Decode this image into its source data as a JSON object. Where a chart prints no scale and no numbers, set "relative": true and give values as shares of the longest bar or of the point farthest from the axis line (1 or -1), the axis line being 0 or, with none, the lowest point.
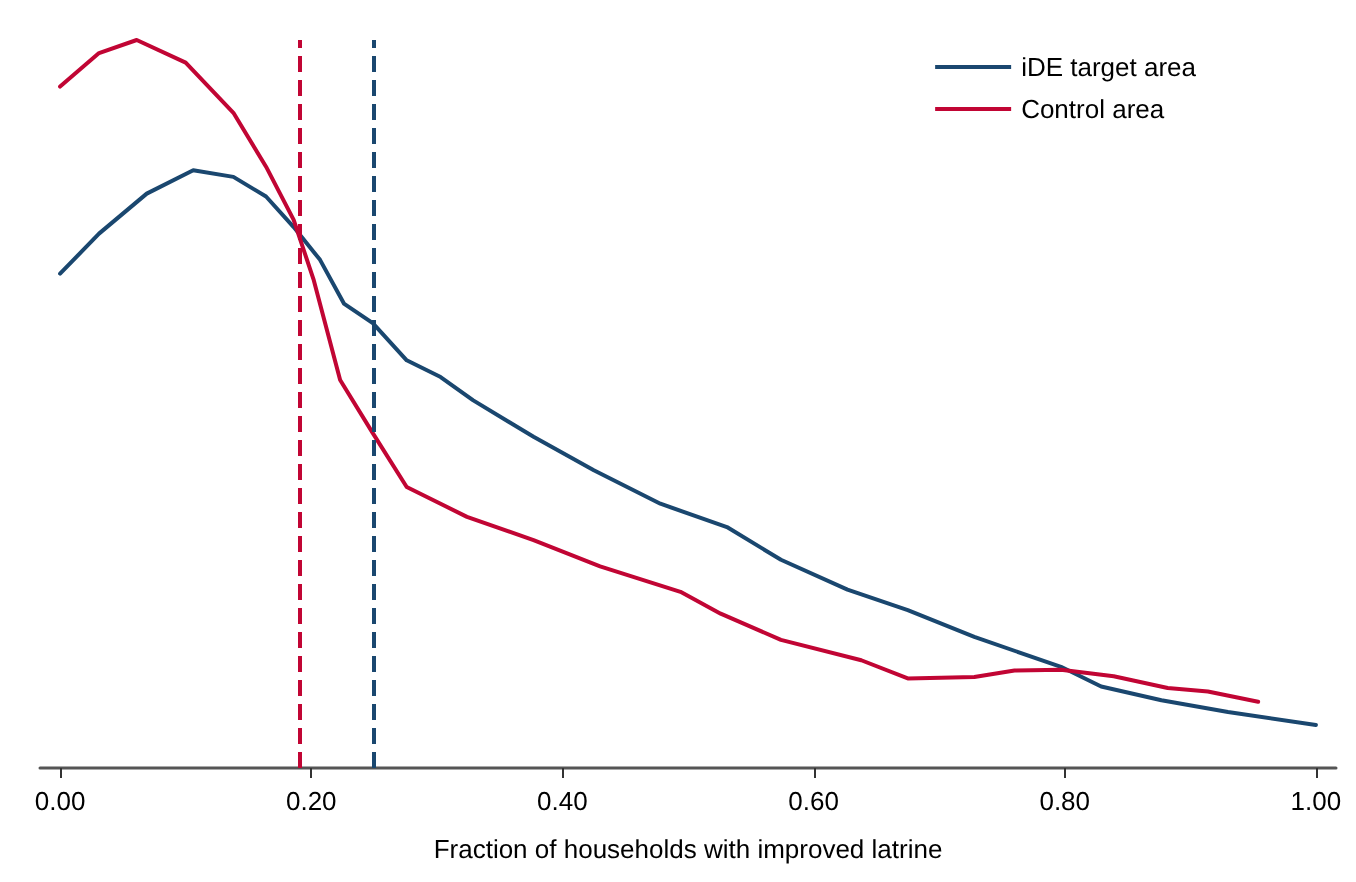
{
  "chart_data": {
    "type": "line",
    "relative": true,
    "xlabel": "Fraction of households with improved latrine",
    "xlim": [
      -0.016,
      1.016
    ],
    "xticks": [
      {
        "value": 0,
        "label": "0.00"
      },
      {
        "value": 0.2,
        "label": "0.20"
      },
      {
        "value": 0.4,
        "label": "0.40"
      },
      {
        "value": 0.6,
        "label": "0.60"
      },
      {
        "value": 0.8,
        "label": "0.80"
      },
      {
        "value": 1,
        "label": "1.00"
      }
    ],
    "series": [
      {
        "name": "iDE target area",
        "color": "#1a476f",
        "x": [
          0,
          0.031,
          0.069,
          0.106,
          0.138,
          0.164,
          0.186,
          0.207,
          0.226,
          0.249,
          0.276,
          0.303,
          0.329,
          0.377,
          0.425,
          0.478,
          0.531,
          0.574,
          0.627,
          0.675,
          0.728,
          0.797,
          0.829,
          0.877,
          0.93,
          1.0
        ],
        "values": [
          0.679,
          0.734,
          0.789,
          0.821,
          0.812,
          0.785,
          0.743,
          0.698,
          0.638,
          0.611,
          0.56,
          0.537,
          0.505,
          0.455,
          0.409,
          0.363,
          0.331,
          0.286,
          0.245,
          0.217,
          0.18,
          0.139,
          0.112,
          0.093,
          0.077,
          0.059
        ]
      },
      {
        "name": "Control area",
        "color": "#c10534",
        "x": [
          0,
          0.031,
          0.061,
          0.1,
          0.138,
          0.164,
          0.186,
          0.202,
          0.223,
          0.249,
          0.276,
          0.324,
          0.377,
          0.43,
          0.494,
          0.526,
          0.574,
          0.638,
          0.675,
          0.728,
          0.76,
          0.797,
          0.839,
          0.882,
          0.914,
          0.954
        ],
        "values": [
          0.936,
          0.982,
          1.0,
          0.969,
          0.9,
          0.826,
          0.753,
          0.67,
          0.533,
          0.46,
          0.386,
          0.345,
          0.313,
          0.277,
          0.242,
          0.212,
          0.176,
          0.148,
          0.123,
          0.125,
          0.134,
          0.135,
          0.126,
          0.11,
          0.105,
          0.091
        ]
      }
    ],
    "ref_lines": [
      {
        "axis": "x",
        "value": 0.189,
        "color": "#c10534",
        "line_style": "dashed"
      },
      {
        "axis": "x",
        "value": 0.248,
        "color": "#1a476f",
        "line_style": "dashed"
      }
    ],
    "legend": "top right",
    "grid": false,
    "marker": "none",
    "line_style": "solid"
  }
}
